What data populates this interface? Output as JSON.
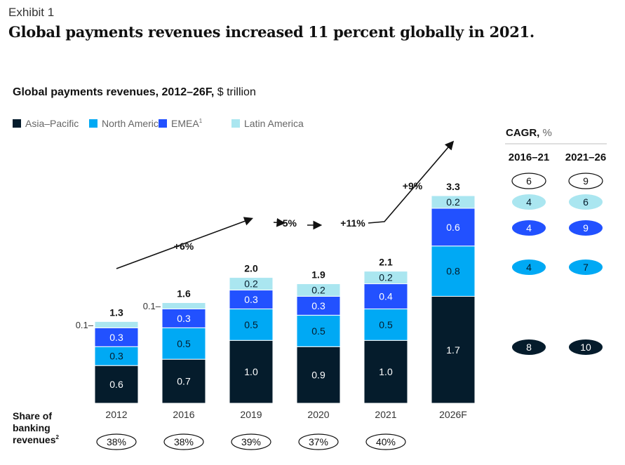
{
  "exhibit": "Exhibit 1",
  "headline": "Global payments revenues increased 11 percent globally in 2021.",
  "chart_data": {
    "type": "bar",
    "stacked": true,
    "title_bold": "Global payments revenues, 2012–26F,",
    "title_unit": "$ trillion",
    "categories": [
      "2012",
      "2016",
      "2019",
      "2020",
      "2021",
      "2026F"
    ],
    "series": [
      {
        "name": "Asia–Pacific",
        "color": "#051c2c",
        "label_color": "#ffffff",
        "values": [
          0.6,
          0.7,
          1.0,
          0.9,
          1.0,
          1.7
        ]
      },
      {
        "name": "North America",
        "color": "#00a9f4",
        "label_color": "#051c2c",
        "values": [
          0.3,
          0.5,
          0.5,
          0.5,
          0.5,
          0.8
        ]
      },
      {
        "name": "EMEA",
        "name_sup": "1",
        "color": "#2251ff",
        "label_color": "#ffffff",
        "values": [
          0.3,
          0.3,
          0.3,
          0.3,
          0.4,
          0.6
        ]
      },
      {
        "name": "Latin America",
        "color": "#aae6f0",
        "label_color": "#051c2c",
        "values": [
          0.1,
          0.1,
          0.2,
          0.2,
          0.2,
          0.2
        ]
      }
    ],
    "totals": [
      "1.3",
      "1.6",
      "2.0",
      "1.9",
      "2.1",
      "3.3"
    ],
    "growth_annotations": [
      {
        "label": "+6%",
        "from": "2012",
        "to": "2019"
      },
      {
        "label": "–5%",
        "from": "2019",
        "to": "2020"
      },
      {
        "label": "+11%",
        "from": "2020",
        "to": "2021"
      },
      {
        "label": "+9%",
        "from": "2021",
        "to": "2026F"
      }
    ],
    "share_label": [
      "Share of",
      "banking",
      "revenues"
    ],
    "share_label_sup": "2",
    "share_of_banking": [
      "38%",
      "38%",
      "39%",
      "37%",
      "40%"
    ],
    "cagr": {
      "title_bold": "CAGR,",
      "title_unit": "%",
      "columns": [
        "2016–21",
        "2021–26"
      ],
      "rows": [
        {
          "series": "Total",
          "values": [
            "6",
            "9"
          ]
        },
        {
          "series": "Latin America",
          "values": [
            "4",
            "6"
          ]
        },
        {
          "series": "EMEA",
          "values": [
            "4",
            "9"
          ]
        },
        {
          "series": "North America",
          "values": [
            "4",
            "7"
          ]
        },
        {
          "series": "Asia–Pacific",
          "values": [
            "8",
            "10"
          ]
        }
      ]
    },
    "ylim": [
      0,
      3.5
    ],
    "grid": false,
    "legend_placement": "top-left"
  }
}
